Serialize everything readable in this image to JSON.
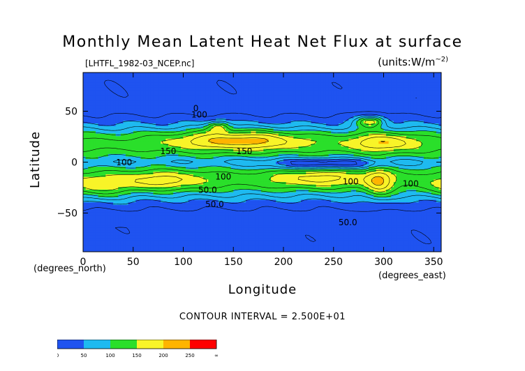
{
  "chart_data": {
    "type": "heatmap",
    "title": "Monthly Mean Latent Heat Net Flux at surface",
    "source_label": "[LHTFL_1982-03_NCEP.nc]",
    "units_label": "(units:W/m",
    "units_exponent": "~2)",
    "xlabel": "Longitude",
    "ylabel": "Latitude",
    "x_unit": "(degrees_east)",
    "y_unit": "(degrees_north)",
    "xlim": [
      0,
      357.5
    ],
    "ylim": [
      -88,
      88
    ],
    "x_ticks": [
      0,
      50,
      100,
      150,
      200,
      250,
      300,
      350
    ],
    "y_ticks": [
      50,
      0,
      -50
    ],
    "contour_interval_text": "CONTOUR INTERVAL = 2.500E+01",
    "contour_labels": [
      {
        "text": "100",
        "lon": 108,
        "lat": 44
      },
      {
        "text": "150",
        "lon": 77,
        "lat": 8
      },
      {
        "text": "100",
        "lon": 33,
        "lat": -3
      },
      {
        "text": "150",
        "lon": 153,
        "lat": 8
      },
      {
        "text": "100",
        "lon": 132,
        "lat": -17
      },
      {
        "text": "50.0",
        "lon": 115,
        "lat": -30
      },
      {
        "text": "50.0",
        "lon": 122,
        "lat": -44
      },
      {
        "text": "100",
        "lon": 259,
        "lat": -22
      },
      {
        "text": "100",
        "lon": 319,
        "lat": -24
      },
      {
        "text": "50.0",
        "lon": 255,
        "lat": -62
      },
      {
        "text": "0",
        "lon": 110,
        "lat": 50
      }
    ],
    "colorbar": {
      "levels": [
        "0",
        "50",
        "100",
        "150",
        "200",
        "250",
        "∞"
      ],
      "colors": [
        "#1f53f0",
        "#1ebaf0",
        "#2adf2a",
        "#f8f428",
        "#ffb400",
        "#ff0000"
      ],
      "band_colors": [
        "#1f53f0",
        "#1f53f0",
        "#1ebaf0",
        "#1ebaf0",
        "#2adf2a",
        "#2adf2a",
        "#f8f428",
        "#f8f428",
        "#ffb400",
        "#ffb400",
        "#ff0000",
        "#ff0000"
      ]
    }
  }
}
